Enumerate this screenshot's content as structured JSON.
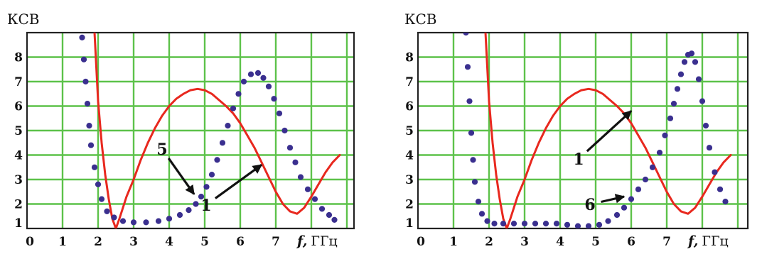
{
  "chart_data": [
    {
      "type": "line",
      "ylabel": "КСВ",
      "xlabel_italic": "f,",
      "xlabel_unit": "ГГц",
      "xlim": [
        0,
        8.8
      ],
      "ylim": [
        1,
        9
      ],
      "xticks": [
        "0",
        "1",
        "2",
        "3",
        "4",
        "5",
        "6",
        "7"
      ],
      "yticks": [
        "1",
        "2",
        "3",
        "4",
        "5",
        "6",
        "7",
        "8"
      ],
      "grid": true,
      "series": [
        {
          "color": "#e8281e",
          "style": "solid",
          "x": [
            1.9,
            2.0,
            2.1,
            2.2,
            2.3,
            2.4,
            2.5,
            2.6,
            2.8,
            3.0,
            3.2,
            3.4,
            3.6,
            3.8,
            4.0,
            4.2,
            4.4,
            4.6,
            4.8,
            5.0,
            5.2,
            5.4,
            5.6,
            5.8,
            6.0,
            6.2,
            6.4,
            6.6,
            6.8,
            7.0,
            7.2,
            7.4,
            7.6,
            7.8,
            8.0,
            8.2,
            8.4,
            8.6,
            8.8
          ],
          "y": [
            9.0,
            6.2,
            4.5,
            3.2,
            2.2,
            1.4,
            1.0,
            1.4,
            2.3,
            3.0,
            3.8,
            4.5,
            5.1,
            5.6,
            6.0,
            6.3,
            6.5,
            6.65,
            6.7,
            6.65,
            6.5,
            6.25,
            6.0,
            5.7,
            5.3,
            4.8,
            4.3,
            3.7,
            3.1,
            2.5,
            2.0,
            1.7,
            1.6,
            1.85,
            2.3,
            2.8,
            3.3,
            3.7,
            4.0
          ]
        },
        {
          "color": "#3a2f8f",
          "style": "dotted",
          "x": [
            1.55,
            1.6,
            1.65,
            1.7,
            1.75,
            1.8,
            1.9,
            2.0,
            2.1,
            2.25,
            2.45,
            2.7,
            3.0,
            3.35,
            3.7,
            4.0,
            4.3,
            4.55,
            4.75,
            4.9,
            5.05,
            5.2,
            5.35,
            5.5,
            5.65,
            5.8,
            5.95,
            6.1,
            6.3,
            6.5,
            6.65,
            6.8,
            6.95,
            7.1,
            7.25,
            7.4,
            7.55,
            7.7,
            7.9,
            8.1,
            8.3,
            8.5,
            8.65
          ],
          "y": [
            8.8,
            7.9,
            7.0,
            6.1,
            5.2,
            4.4,
            3.5,
            2.8,
            2.2,
            1.7,
            1.45,
            1.3,
            1.25,
            1.25,
            1.3,
            1.4,
            1.55,
            1.75,
            2.0,
            2.3,
            2.7,
            3.2,
            3.8,
            4.5,
            5.2,
            5.9,
            6.5,
            7.0,
            7.3,
            7.35,
            7.15,
            6.8,
            6.3,
            5.7,
            5.0,
            4.3,
            3.7,
            3.1,
            2.6,
            2.2,
            1.8,
            1.55,
            1.35
          ]
        }
      ],
      "annotations": [
        {
          "text": "5",
          "arrow_to": [
            4.7,
            2.4
          ]
        },
        {
          "text": "1",
          "arrow_to": [
            6.6,
            3.6
          ]
        }
      ]
    },
    {
      "type": "line",
      "ylabel": "КСВ",
      "xlabel_italic": "f,",
      "xlabel_unit": "ГГц",
      "xlim": [
        0,
        8.8
      ],
      "ylim": [
        1,
        9
      ],
      "xticks": [
        "0",
        "1",
        "2",
        "3",
        "4",
        "5",
        "6",
        "7"
      ],
      "yticks": [
        "1",
        "2",
        "3",
        "4",
        "5",
        "6",
        "7",
        "8"
      ],
      "grid": true,
      "series": [
        {
          "color": "#e8281e",
          "style": "solid",
          "x": [
            1.9,
            2.0,
            2.1,
            2.2,
            2.3,
            2.4,
            2.5,
            2.6,
            2.8,
            3.0,
            3.2,
            3.4,
            3.6,
            3.8,
            4.0,
            4.2,
            4.4,
            4.6,
            4.8,
            5.0,
            5.2,
            5.4,
            5.6,
            5.8,
            6.0,
            6.2,
            6.4,
            6.6,
            6.8,
            7.0,
            7.2,
            7.4,
            7.6,
            7.8,
            8.0,
            8.2,
            8.4,
            8.6,
            8.8
          ],
          "y": [
            9.0,
            6.2,
            4.5,
            3.2,
            2.2,
            1.4,
            1.0,
            1.4,
            2.3,
            3.0,
            3.8,
            4.5,
            5.1,
            5.6,
            6.0,
            6.3,
            6.5,
            6.65,
            6.7,
            6.65,
            6.5,
            6.25,
            6.0,
            5.7,
            5.3,
            4.8,
            4.3,
            3.7,
            3.1,
            2.5,
            2.0,
            1.7,
            1.6,
            1.85,
            2.3,
            2.8,
            3.3,
            3.7,
            4.0
          ]
        },
        {
          "color": "#3a2f8f",
          "style": "dotted",
          "x": [
            1.35,
            1.4,
            1.45,
            1.5,
            1.55,
            1.6,
            1.7,
            1.8,
            1.95,
            2.15,
            2.4,
            2.7,
            3.0,
            3.3,
            3.6,
            3.9,
            4.2,
            4.5,
            4.8,
            5.1,
            5.35,
            5.6,
            5.8,
            6.0,
            6.2,
            6.4,
            6.6,
            6.8,
            6.95,
            7.1,
            7.2,
            7.3,
            7.4,
            7.5,
            7.6,
            7.7,
            7.8,
            7.9,
            8.0,
            8.1,
            8.2,
            8.35,
            8.5,
            8.65
          ],
          "y": [
            9.0,
            7.6,
            6.2,
            4.9,
            3.8,
            2.9,
            2.1,
            1.6,
            1.3,
            1.2,
            1.2,
            1.2,
            1.2,
            1.2,
            1.2,
            1.2,
            1.15,
            1.1,
            1.1,
            1.15,
            1.3,
            1.55,
            1.85,
            2.2,
            2.6,
            3.0,
            3.5,
            4.1,
            4.8,
            5.5,
            6.1,
            6.7,
            7.3,
            7.8,
            8.1,
            8.15,
            7.8,
            7.1,
            6.2,
            5.2,
            4.3,
            3.3,
            2.6,
            2.1
          ]
        }
      ],
      "annotations": [
        {
          "text": "1",
          "arrow_to": [
            6.0,
            5.8
          ]
        },
        {
          "text": "6",
          "arrow_to": [
            5.8,
            2.3
          ]
        }
      ]
    }
  ]
}
